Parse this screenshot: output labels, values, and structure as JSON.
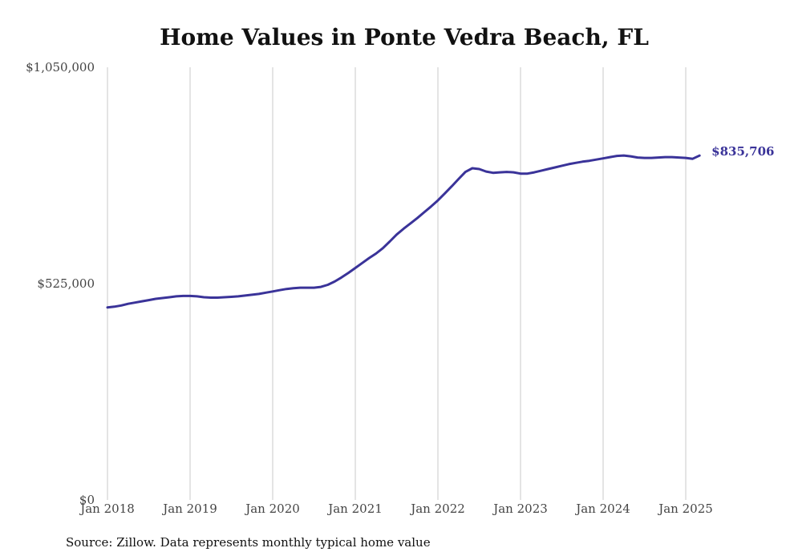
{
  "chart_data": {
    "type": "line",
    "title": "Home Values in Ponte Vedra Beach, FL",
    "xlabel": "",
    "ylabel": "",
    "ylim": [
      0,
      1050000
    ],
    "y_ticks": [
      "$0",
      "$525,000",
      "$1,050,000"
    ],
    "x_ticks": [
      "Jan 2018",
      "Jan 2019",
      "Jan 2020",
      "Jan 2021",
      "Jan 2022",
      "Jan 2023",
      "Jan 2024",
      "Jan 2025"
    ],
    "grid": "vertical",
    "end_label": "$835,706",
    "series": [
      {
        "color": "#3a3399",
        "points": [
          [
            "2018-01",
            467000
          ],
          [
            "2018-02",
            469000
          ],
          [
            "2018-03",
            472000
          ],
          [
            "2018-04",
            476000
          ],
          [
            "2018-05",
            479000
          ],
          [
            "2018-06",
            482000
          ],
          [
            "2018-07",
            485000
          ],
          [
            "2018-08",
            488000
          ],
          [
            "2018-09",
            490000
          ],
          [
            "2018-10",
            492000
          ],
          [
            "2018-11",
            494000
          ],
          [
            "2018-12",
            495000
          ],
          [
            "2019-01",
            495000
          ],
          [
            "2019-02",
            494000
          ],
          [
            "2019-03",
            492000
          ],
          [
            "2019-04",
            491000
          ],
          [
            "2019-05",
            491000
          ],
          [
            "2019-06",
            492000
          ],
          [
            "2019-07",
            493000
          ],
          [
            "2019-08",
            494000
          ],
          [
            "2019-09",
            496000
          ],
          [
            "2019-10",
            498000
          ],
          [
            "2019-11",
            500000
          ],
          [
            "2019-12",
            503000
          ],
          [
            "2020-01",
            506000
          ],
          [
            "2020-02",
            509000
          ],
          [
            "2020-03",
            512000
          ],
          [
            "2020-04",
            514000
          ],
          [
            "2020-05",
            515000
          ],
          [
            "2020-06",
            515000
          ],
          [
            "2020-07",
            515000
          ],
          [
            "2020-08",
            517000
          ],
          [
            "2020-09",
            522000
          ],
          [
            "2020-10",
            530000
          ],
          [
            "2020-11",
            540000
          ],
          [
            "2020-12",
            551000
          ],
          [
            "2021-01",
            563000
          ],
          [
            "2021-02",
            575000
          ],
          [
            "2021-03",
            587000
          ],
          [
            "2021-04",
            598000
          ],
          [
            "2021-05",
            611000
          ],
          [
            "2021-06",
            627000
          ],
          [
            "2021-07",
            644000
          ],
          [
            "2021-08",
            658000
          ],
          [
            "2021-09",
            671000
          ],
          [
            "2021-10",
            684000
          ],
          [
            "2021-11",
            698000
          ],
          [
            "2021-12",
            712000
          ],
          [
            "2022-01",
            727000
          ],
          [
            "2022-02",
            744000
          ],
          [
            "2022-03",
            761000
          ],
          [
            "2022-04",
            779000
          ],
          [
            "2022-05",
            796000
          ],
          [
            "2022-06",
            805000
          ],
          [
            "2022-07",
            803000
          ],
          [
            "2022-08",
            797000
          ],
          [
            "2022-09",
            794000
          ],
          [
            "2022-10",
            795000
          ],
          [
            "2022-11",
            796000
          ],
          [
            "2022-12",
            795000
          ],
          [
            "2023-01",
            792000
          ],
          [
            "2023-02",
            792000
          ],
          [
            "2023-03",
            795000
          ],
          [
            "2023-04",
            799000
          ],
          [
            "2023-05",
            803000
          ],
          [
            "2023-06",
            807000
          ],
          [
            "2023-07",
            811000
          ],
          [
            "2023-08",
            815000
          ],
          [
            "2023-09",
            818000
          ],
          [
            "2023-10",
            821000
          ],
          [
            "2023-11",
            823000
          ],
          [
            "2023-12",
            826000
          ],
          [
            "2024-01",
            829000
          ],
          [
            "2024-02",
            832000
          ],
          [
            "2024-03",
            835000
          ],
          [
            "2024-04",
            836000
          ],
          [
            "2024-05",
            834000
          ],
          [
            "2024-06",
            831000
          ],
          [
            "2024-07",
            830000
          ],
          [
            "2024-08",
            830000
          ],
          [
            "2024-09",
            831000
          ],
          [
            "2024-10",
            832000
          ],
          [
            "2024-11",
            832000
          ],
          [
            "2024-12",
            831000
          ],
          [
            "2025-01",
            830000
          ],
          [
            "2025-02",
            828000
          ],
          [
            "2025-03",
            835706
          ]
        ]
      }
    ]
  },
  "footer": {
    "source": "Source: Zillow. Data represents monthly typical home value"
  }
}
